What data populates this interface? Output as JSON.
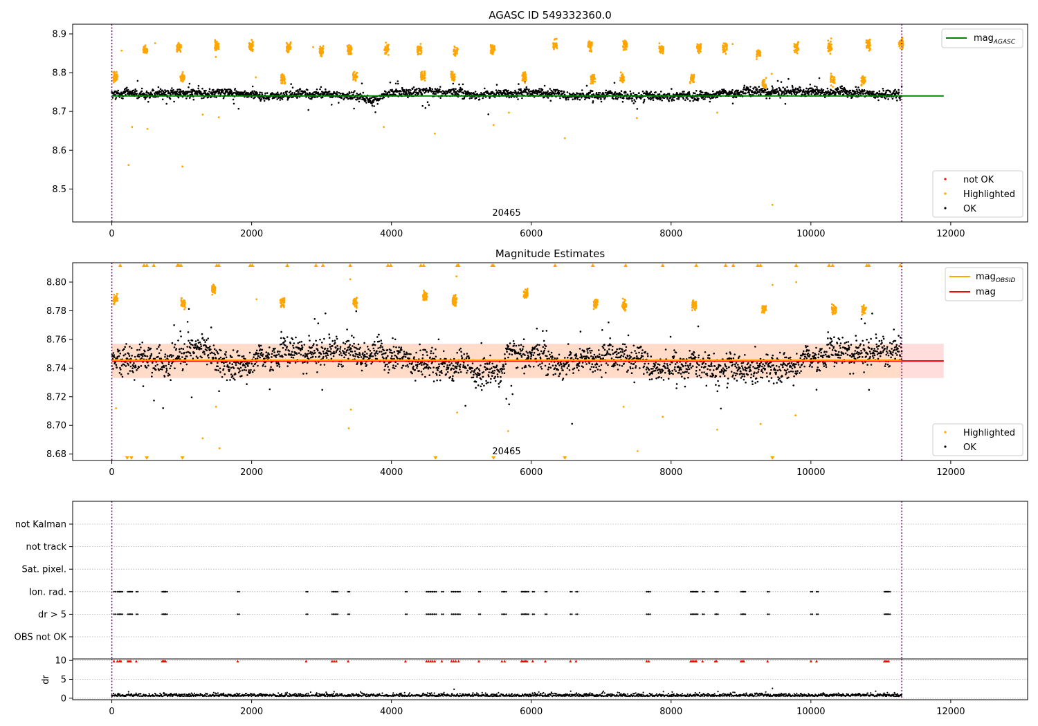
{
  "colors": {
    "ok": "#000000",
    "highlighted": "#ffa500",
    "not_ok": "#ff0000",
    "mag_agasc": "#008000",
    "mag_obsid": "#ffa500",
    "mag": "#ff0000",
    "band_red": "#ffb3b3",
    "band_orange": "#ffd9b3",
    "vline": "#800080",
    "grid": "#b0b0b0"
  },
  "chart_data": [
    {
      "type": "scatter",
      "title": "AGASC ID 549332360.0",
      "obsid_label": "20465",
      "xlim": [
        -560,
        13100
      ],
      "ylim": [
        8.415,
        8.925
      ],
      "xticks": [
        0,
        2000,
        4000,
        6000,
        8000,
        10000,
        12000
      ],
      "xtick_labels": [
        "0",
        "2000",
        "4000",
        "6000",
        "8000",
        "10000",
        "12000"
      ],
      "yticks": [
        8.5,
        8.6,
        8.7,
        8.8,
        8.9
      ],
      "ytick_labels": [
        "8.5",
        "8.6",
        "8.7",
        "8.8",
        "8.9"
      ],
      "vlines": [
        0,
        11300
      ],
      "hline": {
        "name": "mag_AGASC",
        "y": 8.74,
        "x0": 0,
        "x1": 11900
      },
      "ok_band": {
        "center": 8.745,
        "spread": 0.012
      },
      "highlight_clusters": [
        {
          "x": 50,
          "y": 8.79
        },
        {
          "x": 480,
          "y": 8.86
        },
        {
          "x": 960,
          "y": 8.865
        },
        {
          "x": 1010,
          "y": 8.785
        },
        {
          "x": 1500,
          "y": 8.87
        },
        {
          "x": 1990,
          "y": 8.87
        },
        {
          "x": 2450,
          "y": 8.785
        },
        {
          "x": 2530,
          "y": 8.865
        },
        {
          "x": 3000,
          "y": 8.855
        },
        {
          "x": 3400,
          "y": 8.86
        },
        {
          "x": 3480,
          "y": 8.79
        },
        {
          "x": 3930,
          "y": 8.86
        },
        {
          "x": 4400,
          "y": 8.86
        },
        {
          "x": 4450,
          "y": 8.79
        },
        {
          "x": 4920,
          "y": 8.855
        },
        {
          "x": 4880,
          "y": 8.79
        },
        {
          "x": 5450,
          "y": 8.86
        },
        {
          "x": 5900,
          "y": 8.79
        },
        {
          "x": 6340,
          "y": 8.87
        },
        {
          "x": 6840,
          "y": 8.87
        },
        {
          "x": 6880,
          "y": 8.785
        },
        {
          "x": 7340,
          "y": 8.87
        },
        {
          "x": 7300,
          "y": 8.785
        },
        {
          "x": 7860,
          "y": 8.86
        },
        {
          "x": 8300,
          "y": 8.785
        },
        {
          "x": 8400,
          "y": 8.865
        },
        {
          "x": 8770,
          "y": 8.865
        },
        {
          "x": 9250,
          "y": 8.85
        },
        {
          "x": 9330,
          "y": 8.77
        },
        {
          "x": 9790,
          "y": 8.865
        },
        {
          "x": 10270,
          "y": 8.865
        },
        {
          "x": 10310,
          "y": 8.78
        },
        {
          "x": 10750,
          "y": 8.78
        },
        {
          "x": 10820,
          "y": 8.875
        },
        {
          "x": 11290,
          "y": 8.875
        }
      ],
      "highlight_outliers": [
        {
          "x": 240,
          "y": 8.562
        },
        {
          "x": 290,
          "y": 8.66
        },
        {
          "x": 510,
          "y": 8.655
        },
        {
          "x": 1010,
          "y": 8.558
        },
        {
          "x": 1300,
          "y": 8.692
        },
        {
          "x": 1530,
          "y": 8.685
        },
        {
          "x": 4620,
          "y": 8.643
        },
        {
          "x": 5460,
          "y": 8.665
        },
        {
          "x": 5680,
          "y": 8.697
        },
        {
          "x": 6480,
          "y": 8.631
        },
        {
          "x": 7510,
          "y": 8.683
        },
        {
          "x": 8660,
          "y": 8.697
        },
        {
          "x": 9450,
          "y": 8.459
        },
        {
          "x": 9440,
          "y": 8.797
        },
        {
          "x": 2060,
          "y": 8.788
        },
        {
          "x": 2880,
          "y": 8.866
        },
        {
          "x": 3890,
          "y": 8.66
        },
        {
          "x": 8880,
          "y": 8.874
        },
        {
          "x": 620,
          "y": 8.876
        },
        {
          "x": 140,
          "y": 8.857
        }
      ],
      "legend_lines": [
        {
          "label": "mag",
          "subscript": "AGASC",
          "color_key": "mag_agasc"
        }
      ],
      "legend_points": [
        {
          "label": "not OK",
          "color_key": "not_ok"
        },
        {
          "label": "Highlighted",
          "color_key": "highlighted"
        },
        {
          "label": "OK",
          "color_key": "ok"
        }
      ]
    },
    {
      "type": "scatter",
      "title": "Magnitude Estimates",
      "obsid_label": "20465",
      "xlim": [
        -560,
        13100
      ],
      "ylim": [
        8.6755,
        8.8135
      ],
      "xticks": [
        0,
        2000,
        4000,
        6000,
        8000,
        10000,
        12000
      ],
      "xtick_labels": [
        "0",
        "2000",
        "4000",
        "6000",
        "8000",
        "10000",
        "12000"
      ],
      "yticks": [
        8.68,
        8.7,
        8.72,
        8.74,
        8.76,
        8.78,
        8.8
      ],
      "ytick_labels": [
        "8.68",
        "8.70",
        "8.72",
        "8.74",
        "8.76",
        "8.78",
        "8.80"
      ],
      "vlines": [
        0,
        11300
      ],
      "mag_obsid": {
        "y": 8.7455,
        "x0": 0,
        "x1": 11300
      },
      "mag": {
        "y": 8.745,
        "x0": 0,
        "x1": 11900
      },
      "band_mag": {
        "y0": 8.733,
        "y1": 8.757,
        "x0": 0,
        "x1": 11900
      },
      "band_obsid": {
        "y0": 8.7335,
        "y1": 8.7565,
        "x0": 0,
        "x1": 11300
      },
      "ok_band": {
        "center": 8.745,
        "spread": 0.01
      },
      "highlight_clusters": [
        {
          "x": 50,
          "y": 8.788
        },
        {
          "x": 1020,
          "y": 8.785
        },
        {
          "x": 1460,
          "y": 8.795
        },
        {
          "x": 2440,
          "y": 8.786
        },
        {
          "x": 3480,
          "y": 8.786
        },
        {
          "x": 4480,
          "y": 8.79
        },
        {
          "x": 4900,
          "y": 8.787
        },
        {
          "x": 5920,
          "y": 8.792
        },
        {
          "x": 6920,
          "y": 8.785
        },
        {
          "x": 7330,
          "y": 8.784
        },
        {
          "x": 8330,
          "y": 8.784
        },
        {
          "x": 9330,
          "y": 8.781
        },
        {
          "x": 10330,
          "y": 8.781
        },
        {
          "x": 10760,
          "y": 8.781
        }
      ],
      "highlight_outliers": [
        {
          "x": 60,
          "y": 8.712
        },
        {
          "x": 1300,
          "y": 8.691
        },
        {
          "x": 1490,
          "y": 8.713
        },
        {
          "x": 1540,
          "y": 8.684
        },
        {
          "x": 2070,
          "y": 8.788
        },
        {
          "x": 3390,
          "y": 8.698
        },
        {
          "x": 3420,
          "y": 8.711
        },
        {
          "x": 3410,
          "y": 8.802
        },
        {
          "x": 4940,
          "y": 8.709
        },
        {
          "x": 4930,
          "y": 8.804
        },
        {
          "x": 5670,
          "y": 8.696
        },
        {
          "x": 7320,
          "y": 8.713
        },
        {
          "x": 7520,
          "y": 8.682
        },
        {
          "x": 7880,
          "y": 8.706
        },
        {
          "x": 8660,
          "y": 8.697
        },
        {
          "x": 9280,
          "y": 8.701
        },
        {
          "x": 9450,
          "y": 8.798
        },
        {
          "x": 9780,
          "y": 8.707
        },
        {
          "x": 9790,
          "y": 8.8
        }
      ],
      "top_markers": [
        120,
        460,
        500,
        600,
        940,
        960,
        990,
        1500,
        1530,
        1980,
        2010,
        2510,
        2920,
        3020,
        3410,
        3950,
        3990,
        4420,
        4460,
        4940,
        4960,
        5440,
        5460,
        6340,
        6880,
        7350,
        7880,
        8360,
        8780,
        8890,
        9240,
        9280,
        9790,
        10260,
        10310,
        10800,
        10830,
        11280
      ],
      "bottom_markers": [
        220,
        280,
        500,
        1010,
        4630,
        5460,
        6480,
        9450
      ],
      "legend_lines": [
        {
          "label": "mag",
          "subscript": "OBSID",
          "color_key": "mag_obsid"
        },
        {
          "label": "mag",
          "subscript": "",
          "color_key": "mag"
        }
      ],
      "legend_points": [
        {
          "label": "Highlighted",
          "color_key": "highlighted"
        },
        {
          "label": "OK",
          "color_key": "ok"
        }
      ]
    },
    {
      "type": "scatter",
      "title": "",
      "xlim": [
        -560,
        13100
      ],
      "categories": [
        "not Kalman",
        "not track",
        "Sat. pixel.",
        "Ion. rad.",
        "dr > 5",
        "OBS not OK"
      ],
      "vlines": [
        0,
        11300
      ],
      "flag_times": [
        30,
        80,
        110,
        130,
        230,
        250,
        270,
        350,
        720,
        740,
        750,
        770,
        1800,
        2780,
        3150,
        3180,
        3210,
        3380,
        4200,
        4500,
        4530,
        4560,
        4590,
        4620,
        4720,
        4860,
        4890,
        4920,
        4960,
        5250,
        5580,
        5620,
        5860,
        5880,
        5900,
        5920,
        5940,
        6020,
        6200,
        6560,
        6640,
        7650,
        7680,
        8280,
        8300,
        8320,
        8340,
        8360,
        8450,
        8630,
        8650,
        9000,
        9020,
        9040,
        9380,
        10000,
        10080,
        11050,
        11070,
        11090,
        11110
      ],
      "flag_rows": [
        "Ion. rad.",
        "dr > 5"
      ],
      "dr_panel": {
        "ylabel": "dr",
        "ylim": [
          -0.4,
          10.4
        ],
        "yticks": [
          0,
          5,
          10
        ],
        "ytick_labels": [
          "0",
          "5",
          "10"
        ],
        "dr_baseline": 0.5,
        "outliers": [
          {
            "x": 240,
            "y": 1.7
          },
          {
            "x": 9450,
            "y": 2.6
          },
          {
            "x": 2930,
            "y": 1.4
          },
          {
            "x": 1600,
            "y": 1.3
          }
        ]
      },
      "xticks": [
        0,
        2000,
        4000,
        6000,
        8000,
        10000,
        12000
      ],
      "xtick_labels": [
        "0",
        "2000",
        "4000",
        "6000",
        "8000",
        "10000",
        "12000"
      ]
    }
  ]
}
